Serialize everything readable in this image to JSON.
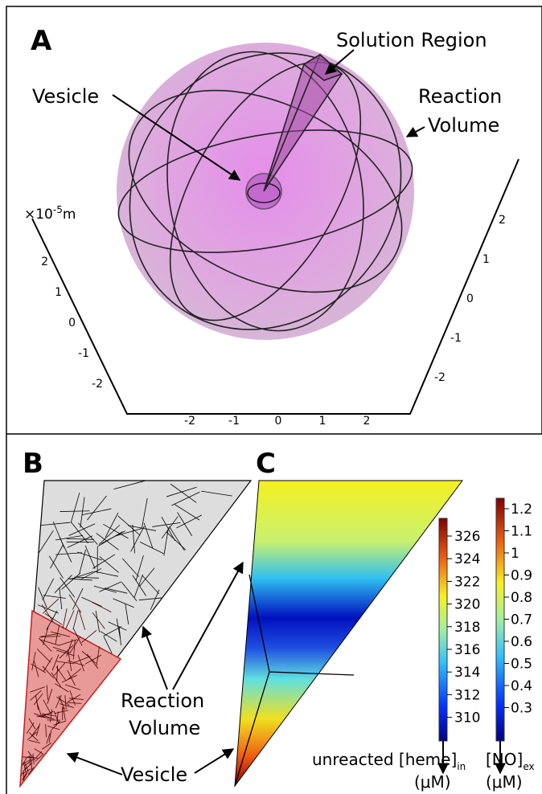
{
  "panel_a": {
    "letter": "A",
    "solution_region": "Solution Region",
    "vesicle": "Vesicle",
    "reaction_volume": [
      "Reaction",
      "Volume"
    ],
    "axis": {
      "unit_prefix": "×10",
      "unit_exponent": "-5",
      "unit": "m",
      "left_ticks": [
        2,
        1,
        0,
        -1,
        -2
      ],
      "bottom_ticks": [
        -2,
        -1,
        0,
        1,
        2
      ],
      "right_ticks": [
        2,
        1,
        0,
        -1,
        -2
      ]
    }
  },
  "panel_b": {
    "letter": "B"
  },
  "panel_c": {
    "letter": "C",
    "reaction_volume": [
      "Reaction",
      "Volume"
    ],
    "vesicle": "Vesicle",
    "heme_colorbar": {
      "ticks": [
        326,
        324,
        322,
        320,
        318,
        316,
        314,
        312,
        310
      ],
      "label": "unreacted [heme]",
      "label_sub": "in",
      "unit": "(μM)"
    },
    "no_colorbar": {
      "ticks": [
        1.2,
        1.1,
        1,
        0.9,
        0.8,
        0.7,
        0.6,
        0.5,
        0.4,
        0.3
      ],
      "label": "[NO]",
      "label_sub": "ex",
      "unit": "(μM)"
    }
  }
}
